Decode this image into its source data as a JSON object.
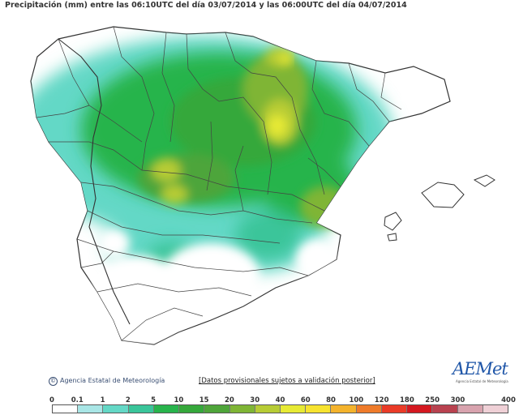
{
  "title": "Precipitación (mm) entre las 06:10UTC del día 03/07/2014 y las 06:00UTC del día 04/07/2014",
  "credit": "Agencia Estatal de Meteorología",
  "note": "[Datos provisionales sujetos a validación posterior]",
  "logo": {
    "main": "AEMet",
    "small": "Agencia Estatal de Meteorología"
  },
  "legend": {
    "labels": [
      "0",
      "0.1",
      "1",
      "2",
      "5",
      "10",
      "15",
      "20",
      "30",
      "40",
      "60",
      "80",
      "100",
      "120",
      "180",
      "250",
      "300",
      "400"
    ],
    "colors": [
      "#ffffff",
      "#a9e6e6",
      "#64d8c6",
      "#3ac59a",
      "#28b44c",
      "#35a83b",
      "#4ea53a",
      "#7fb535",
      "#b7cc35",
      "#e7ea34",
      "#f7e32f",
      "#f4b32c",
      "#ef7b2a",
      "#ea3b27",
      "#d41820",
      "#b9424f",
      "#d8a3ae",
      "#efd0d6"
    ]
  },
  "colors": {
    "land_dry": "#ffffff",
    "land_trace": "#a9e6e6",
    "sea": "#ffffff",
    "borders": "#444444"
  }
}
